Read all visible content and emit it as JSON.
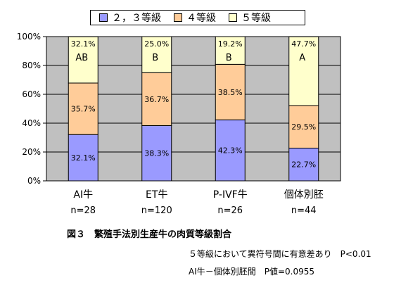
{
  "chart_data": {
    "type": "bar",
    "stacked": true,
    "categories": [
      "AI牛",
      "ET牛",
      "P-IVF牛",
      "個体別胚"
    ],
    "category_n": [
      "n=28",
      "n=120",
      "n=26",
      "n=44"
    ],
    "series": [
      {
        "name": "２，３等級",
        "color": "#9a9aff",
        "values": [
          32.1,
          38.3,
          42.3,
          22.7
        ],
        "labels": [
          "32.1%",
          "38.3%",
          "42.3%",
          "22.7%"
        ]
      },
      {
        "name": "４等級",
        "color": "#ffcc99",
        "values": [
          35.7,
          36.7,
          38.5,
          29.5
        ],
        "labels": [
          "35.7%",
          "36.7%",
          "38.5%",
          "29.5%"
        ]
      },
      {
        "name": "５等級",
        "color": "#ffffcc",
        "values": [
          32.1,
          25.0,
          19.2,
          47.7
        ],
        "labels": [
          "32.1%",
          "25.0%",
          "19.2%",
          "47.7%"
        ]
      }
    ],
    "significance_letters": [
      "AB",
      "B",
      "B",
      "A"
    ],
    "ylim": [
      0,
      100
    ],
    "yticks": [
      0,
      20,
      40,
      60,
      80,
      100
    ],
    "ytick_labels": [
      "0%",
      "20%",
      "40%",
      "60%",
      "80%",
      "100%"
    ],
    "plot_background": "#c0c0c0",
    "grid": true,
    "legend_position": "top"
  },
  "caption": "図３　繁殖手法別生産牛の肉質等級割合",
  "notes": [
    "５等級において異符号間に有意差あり　P<0.01",
    "AI牛－個体別胚間　P値=0.0955"
  ]
}
